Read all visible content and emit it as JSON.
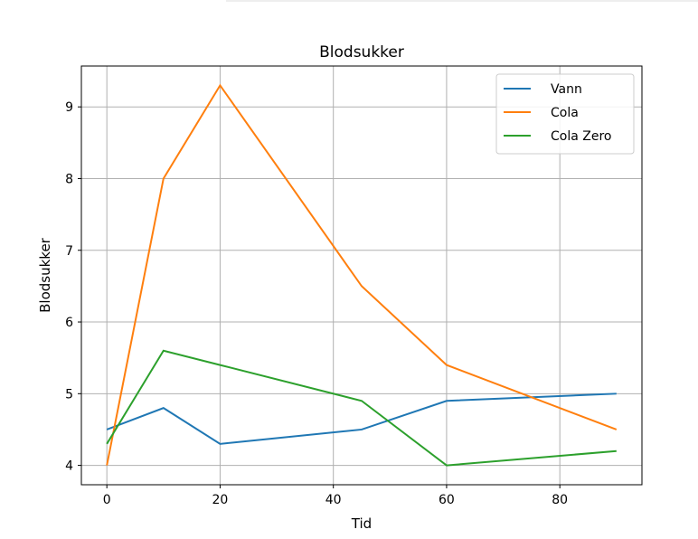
{
  "chart_data": {
    "type": "line",
    "title": "Blodsukker",
    "xlabel": "Tid",
    "ylabel": "Blodsukker",
    "xlim": [
      -4.5,
      94.5
    ],
    "ylim": [
      3.73,
      9.57
    ],
    "xticks": [
      0,
      20,
      40,
      60,
      80
    ],
    "yticks": [
      4,
      5,
      6,
      7,
      8,
      9
    ],
    "grid": true,
    "legend_position": "top-right",
    "x": [
      0,
      10,
      20,
      45,
      60,
      90
    ],
    "series": [
      {
        "name": "Vann",
        "color": "#1f77b4",
        "values": [
          4.5,
          4.8,
          4.3,
          4.5,
          4.9,
          5.0
        ]
      },
      {
        "name": "Cola",
        "color": "#ff7f0e",
        "values": [
          4.0,
          8.0,
          9.3,
          6.5,
          5.4,
          4.5
        ]
      },
      {
        "name": "Cola Zero",
        "color": "#2ca02c",
        "values": [
          4.3,
          5.6,
          5.4,
          4.9,
          4.0,
          4.2
        ]
      }
    ]
  }
}
